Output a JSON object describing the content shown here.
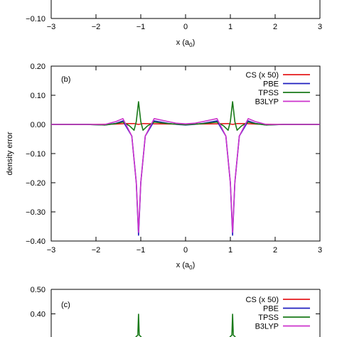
{
  "chart_data": [
    {
      "panel": "top (partial)",
      "type": "line",
      "xlabel": "x (a0)",
      "xlabel_main": "x (a",
      "xlabel_sub": "0",
      "xlabel_close": ")",
      "xlim": [
        -3,
        3
      ],
      "xticks": [
        "−3",
        "−2",
        "−1",
        "0",
        "1",
        "2",
        "3"
      ],
      "ylim": [
        -0.1,
        0.2
      ],
      "yticks_visible": [
        "−0.10"
      ]
    },
    {
      "panel": "(b)",
      "type": "line",
      "ylabel": "density error",
      "xlabel": "x (a0)",
      "xlabel_main": "x (a",
      "xlabel_sub": "0",
      "xlabel_close": ")",
      "xlim": [
        -3,
        3
      ],
      "ylim": [
        -0.4,
        0.2
      ],
      "xticks": [
        "−3",
        "−2",
        "−1",
        "0",
        "1",
        "2",
        "3"
      ],
      "yticks": [
        "0.20",
        "0.10",
        "0.00",
        "−0.10",
        "−0.20",
        "−0.30",
        "−0.40"
      ],
      "ytick_values": [
        0.2,
        0.1,
        0.0,
        -0.1,
        -0.2,
        -0.3,
        -0.4
      ],
      "legend_position": "top-right",
      "series": [
        {
          "name": "CS (x 50)",
          "color": "#e41a1c",
          "points": [
            [
              -3,
              0
            ],
            [
              -2,
              0
            ],
            [
              -1.6,
              0.001
            ],
            [
              -1.3,
              0.003
            ],
            [
              -1.15,
              0.003
            ],
            [
              -1.05,
              0.0
            ],
            [
              -0.95,
              0.003
            ],
            [
              -0.7,
              0.002
            ],
            [
              0,
              0.001
            ],
            [
              0.7,
              0.002
            ],
            [
              0.95,
              0.003
            ],
            [
              1.05,
              0.0
            ],
            [
              1.15,
              0.003
            ],
            [
              1.3,
              0.003
            ],
            [
              1.6,
              0.001
            ],
            [
              2,
              0
            ],
            [
              3,
              0
            ]
          ]
        },
        {
          "name": "PBE",
          "color": "#1f1fbf",
          "points": [
            [
              -3,
              0
            ],
            [
              -2.2,
              0
            ],
            [
              -1.8,
              -0.002
            ],
            [
              -1.55,
              0.004
            ],
            [
              -1.4,
              0.012
            ],
            [
              -1.2,
              -0.04
            ],
            [
              -1.1,
              -0.2
            ],
            [
              -1.05,
              -0.38
            ],
            [
              -1.0,
              -0.2
            ],
            [
              -0.9,
              -0.04
            ],
            [
              -0.7,
              0.012
            ],
            [
              -0.4,
              0.004
            ],
            [
              -0.2,
              0.0
            ],
            [
              0,
              -0.002
            ],
            [
              0.2,
              0.0
            ],
            [
              0.4,
              0.004
            ],
            [
              0.7,
              0.012
            ],
            [
              0.9,
              -0.04
            ],
            [
              1.0,
              -0.2
            ],
            [
              1.05,
              -0.38
            ],
            [
              1.1,
              -0.2
            ],
            [
              1.2,
              -0.04
            ],
            [
              1.4,
              0.012
            ],
            [
              1.55,
              0.004
            ],
            [
              1.8,
              -0.002
            ],
            [
              2.2,
              0
            ],
            [
              3,
              0
            ]
          ]
        },
        {
          "name": "TPSS",
          "color": "#1a7a1a",
          "points": [
            [
              -3,
              0
            ],
            [
              -2.2,
              0
            ],
            [
              -1.8,
              -0.002
            ],
            [
              -1.55,
              0.003
            ],
            [
              -1.4,
              0.008
            ],
            [
              -1.25,
              -0.005
            ],
            [
              -1.15,
              -0.02
            ],
            [
              -1.1,
              0.01
            ],
            [
              -1.05,
              0.078
            ],
            [
              -1.0,
              0.01
            ],
            [
              -0.95,
              -0.02
            ],
            [
              -0.85,
              -0.005
            ],
            [
              -0.7,
              0.008
            ],
            [
              -0.4,
              0.003
            ],
            [
              0,
              -0.001
            ],
            [
              0.4,
              0.003
            ],
            [
              0.7,
              0.008
            ],
            [
              0.85,
              -0.005
            ],
            [
              0.95,
              -0.02
            ],
            [
              1.0,
              0.01
            ],
            [
              1.05,
              0.078
            ],
            [
              1.1,
              0.01
            ],
            [
              1.15,
              -0.02
            ],
            [
              1.25,
              -0.005
            ],
            [
              1.4,
              0.008
            ],
            [
              1.55,
              0.003
            ],
            [
              1.8,
              -0.002
            ],
            [
              2.2,
              0
            ],
            [
              3,
              0
            ]
          ]
        },
        {
          "name": "B3LYP",
          "color": "#cc33cc",
          "points": [
            [
              -3,
              0
            ],
            [
              -2.2,
              0
            ],
            [
              -1.8,
              0.0
            ],
            [
              -1.55,
              0.01
            ],
            [
              -1.4,
              0.02
            ],
            [
              -1.2,
              -0.04
            ],
            [
              -1.1,
              -0.2
            ],
            [
              -1.05,
              -0.37
            ],
            [
              -1.0,
              -0.2
            ],
            [
              -0.9,
              -0.04
            ],
            [
              -0.7,
              0.02
            ],
            [
              -0.4,
              0.01
            ],
            [
              -0.2,
              0.004
            ],
            [
              0,
              0.002
            ],
            [
              0.2,
              0.004
            ],
            [
              0.4,
              0.01
            ],
            [
              0.7,
              0.02
            ],
            [
              0.9,
              -0.04
            ],
            [
              1.0,
              -0.2
            ],
            [
              1.05,
              -0.37
            ],
            [
              1.1,
              -0.2
            ],
            [
              1.2,
              -0.04
            ],
            [
              1.4,
              0.02
            ],
            [
              1.55,
              0.01
            ],
            [
              1.8,
              0.0
            ],
            [
              2.2,
              0
            ],
            [
              3,
              0
            ]
          ]
        }
      ]
    },
    {
      "panel": "(c)",
      "type": "line",
      "xlim": [
        -3,
        3
      ],
      "ylim": [
        0.0,
        0.5
      ],
      "yticks_visible": [
        "0.50",
        "0.40"
      ],
      "ytick_values_visible": [
        0.5,
        0.4
      ],
      "legend_position": "top-right",
      "series": [
        {
          "name": "CS (x 50)",
          "color": "#e41a1c"
        },
        {
          "name": "PBE",
          "color": "#1f1fbf"
        },
        {
          "name": "TPSS",
          "color": "#1a7a1a",
          "peak_points": [
            [
              -1.05,
              0.4
            ],
            [
              1.05,
              0.4
            ]
          ]
        },
        {
          "name": "B3LYP",
          "color": "#cc33cc"
        }
      ]
    }
  ]
}
